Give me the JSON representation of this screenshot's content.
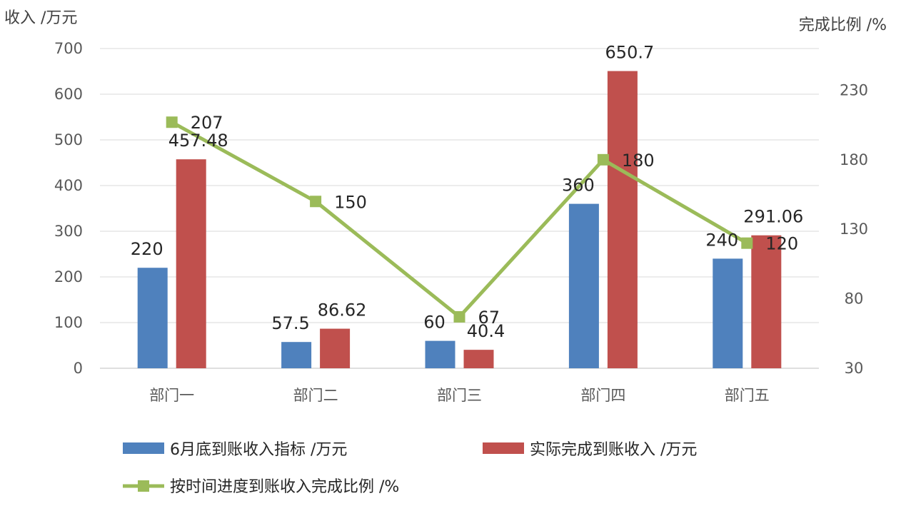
{
  "chart_data": {
    "type": "bar",
    "categories": [
      "部门一",
      "部门二",
      "部门三",
      "部门四",
      "部门五"
    ],
    "y_left": {
      "title": "收入 /万元",
      "range": [
        0,
        700
      ],
      "ticks": [
        "0",
        "100",
        "200",
        "300",
        "400",
        "500",
        "600",
        "700"
      ]
    },
    "y_right": {
      "title": "完成比例 /%",
      "range": [
        30,
        260
      ],
      "ticks": [
        "30",
        "80",
        "130",
        "180",
        "230"
      ]
    },
    "grid": true,
    "legend_position": "bottom",
    "series": [
      {
        "name": "6月底到账收入指标 /万元",
        "type": "bar",
        "axis": "left",
        "color": "#4F81BD",
        "values": [
          220,
          57.5,
          60,
          360,
          240
        ],
        "labels": [
          "220",
          "57.5",
          "60",
          "360",
          "240"
        ]
      },
      {
        "name": "实际完成到账收入 /万元",
        "type": "bar",
        "axis": "left",
        "color": "#C0504D",
        "values": [
          457.48,
          86.62,
          40.4,
          650.7,
          291.06
        ],
        "labels": [
          "457.48",
          "86.62",
          "40.4",
          "650.7",
          "291.06"
        ]
      },
      {
        "name": "按时间进度到账收入完成比例 /%",
        "type": "line",
        "axis": "right",
        "color": "#9BBB59",
        "marker": "square",
        "values": [
          207,
          150,
          67,
          180,
          120
        ],
        "labels": [
          "207",
          "150",
          "67",
          "180",
          "120"
        ]
      }
    ]
  }
}
